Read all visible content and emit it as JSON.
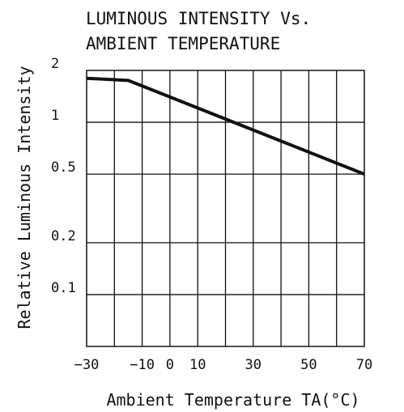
{
  "chart_data": {
    "type": "line",
    "title_lines": [
      "LUMINOUS INTENSITY Vs.",
      "AMBIENT TEMPERATURE"
    ],
    "xlabel": "Ambient Temperature TA(°C)",
    "ylabel": "Relative Luminous Intensity",
    "y_scale": "log",
    "xlim": [
      -30,
      70
    ],
    "ylim": [
      0.05,
      2
    ],
    "x_grid": [
      -30,
      -20,
      -10,
      0,
      10,
      20,
      30,
      40,
      50,
      60,
      70
    ],
    "y_grid": [
      0.05,
      0.1,
      0.2,
      0.5,
      1,
      2
    ],
    "x_tick_labels": [
      {
        "v": -30,
        "label": "−30"
      },
      {
        "v": -10,
        "label": "−10"
      },
      {
        "v": 0,
        "label": "0"
      },
      {
        "v": 10,
        "label": "10"
      },
      {
        "v": 30,
        "label": "30"
      },
      {
        "v": 50,
        "label": "50"
      },
      {
        "v": 70,
        "label": "70"
      }
    ],
    "y_tick_labels": [
      {
        "v": 2,
        "label": "2"
      },
      {
        "v": 1,
        "label": "1"
      },
      {
        "v": 0.5,
        "label": "0.5"
      },
      {
        "v": 0.2,
        "label": "0.2"
      },
      {
        "v": 0.1,
        "label": "0.1"
      }
    ],
    "grid": true,
    "series": [
      {
        "x": [
          -30,
          -15,
          70
        ],
        "y": [
          1.8,
          1.75,
          0.5
        ],
        "color": "#111111"
      }
    ]
  }
}
